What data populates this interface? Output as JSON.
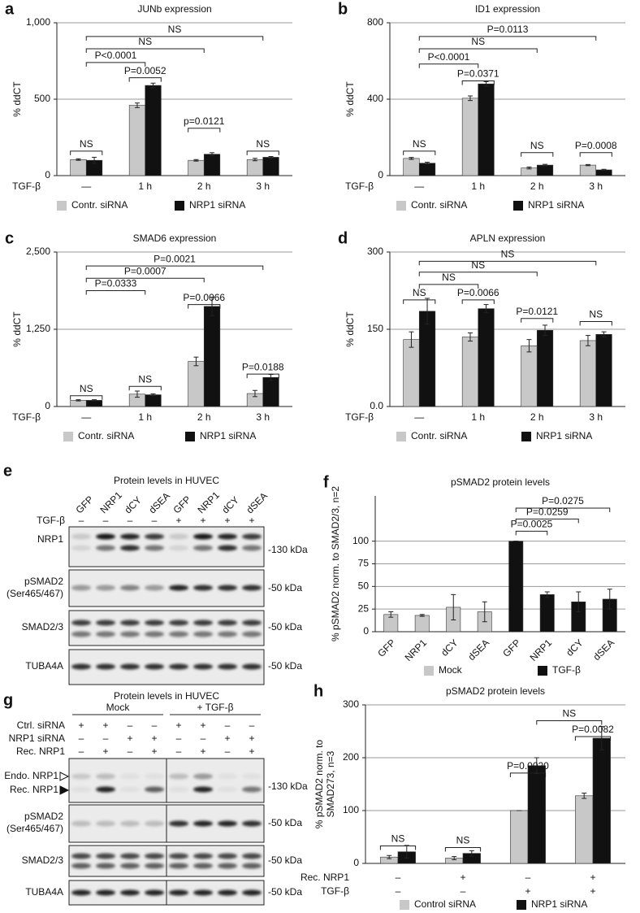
{
  "chart_data": [
    {
      "panel": "a",
      "type": "bar",
      "title": "JUNb expression",
      "ylabel": "% ddCT",
      "xlabel": "TGF-β",
      "categories": [
        "—",
        "1 h",
        "2 h",
        "3 h"
      ],
      "series": [
        {
          "name": "Contr. siRNA",
          "color": "#c8c8c8",
          "values": [
            105,
            460,
            100,
            105
          ],
          "errors": [
            5,
            15,
            5,
            8
          ]
        },
        {
          "name": "NRP1 siRNA",
          "color": "#111111",
          "values": [
            100,
            590,
            140,
            120
          ],
          "errors": [
            20,
            15,
            10,
            5
          ]
        }
      ],
      "ylim": [
        0,
        1000
      ],
      "yticks": [
        0,
        500,
        {
          "value": 1000,
          "label": "1,000"
        }
      ],
      "grid": true,
      "annotations": [
        "NS",
        "P=0.0052",
        "p=0.0121",
        "NS",
        "P<0.0001",
        "NS",
        "NS"
      ]
    },
    {
      "panel": "b",
      "type": "bar",
      "title": "ID1 expression",
      "ylabel": "% ddCT",
      "xlabel": "TGF-β",
      "categories": [
        "—",
        "1 h",
        "2 h",
        "3 h"
      ],
      "series": [
        {
          "name": "Contr. siRNA",
          "color": "#c8c8c8",
          "values": [
            90,
            405,
            40,
            55
          ],
          "errors": [
            5,
            12,
            5,
            3
          ]
        },
        {
          "name": "NRP1 siRNA",
          "color": "#111111",
          "values": [
            65,
            480,
            55,
            30
          ],
          "errors": [
            5,
            12,
            4,
            3
          ]
        }
      ],
      "ylim": [
        0,
        800
      ],
      "yticks": [
        0,
        400,
        800
      ],
      "grid": true,
      "annotations": [
        "NS",
        "P=0.0371",
        "NS",
        "P=0.0008",
        "P<0.0001",
        "NS",
        "P=0.0113"
      ]
    },
    {
      "panel": "c",
      "type": "bar",
      "title": "SMAD6 expression",
      "ylabel": "% ddCT",
      "xlabel": "TGF-β",
      "categories": [
        "—",
        "1 h",
        "2 h",
        "3 h"
      ],
      "series": [
        {
          "name": "Contr. siRNA",
          "color": "#c8c8c8",
          "values": [
            100,
            200,
            730,
            210
          ],
          "errors": [
            10,
            50,
            70,
            50
          ]
        },
        {
          "name": "NRP1 siRNA",
          "color": "#111111",
          "values": [
            100,
            190,
            1620,
            470
          ],
          "errors": [
            10,
            15,
            150,
            50
          ]
        }
      ],
      "ylim": [
        0,
        2500
      ],
      "yticks": [
        0,
        {
          "value": 1250,
          "label": "1,250"
        },
        {
          "value": 2500,
          "label": "2,500"
        }
      ],
      "grid": true,
      "annotations": [
        "NS",
        "NS",
        "P=0.0066",
        "P=0.0188",
        "P=0.0333",
        "P=0.0007",
        "P=0.0021"
      ]
    },
    {
      "panel": "d",
      "type": "bar",
      "title": "APLN expression",
      "ylabel": "% ddCT",
      "xlabel": "TGF-β",
      "categories": [
        "—",
        "1 h",
        "2 h",
        "3 h"
      ],
      "series": [
        {
          "name": "Contr. siRNA",
          "color": "#c8c8c8",
          "values": [
            130,
            135,
            118,
            128
          ],
          "errors": [
            15,
            8,
            12,
            10
          ]
        },
        {
          "name": "NRP1 siRNA",
          "color": "#111111",
          "values": [
            185,
            190,
            148,
            140
          ],
          "errors": [
            25,
            8,
            10,
            5
          ]
        }
      ],
      "ylim": [
        0,
        300
      ],
      "yticks": [
        {
          "value": 0,
          "label": "0.0"
        },
        150,
        300
      ],
      "grid": true,
      "annotations": [
        "NS",
        "P=0.0066",
        "P=0.0121",
        "NS",
        "NS",
        "NS",
        "NS"
      ]
    },
    {
      "panel": "f",
      "type": "bar",
      "title": "pSMAD2 protein levels",
      "ylabel": "% pSMAD2 norm. to SMAD2/3, n=2",
      "categories": [
        "GFP",
        "NRP1",
        "dCY",
        "dSEA",
        "GFP",
        "NRP1",
        "dCY",
        "dSEA"
      ],
      "series": [
        {
          "name": "Mock",
          "color": "#c8c8c8",
          "values": [
            19,
            18,
            27,
            22,
            null,
            null,
            null,
            null
          ],
          "errors": [
            3,
            1,
            14,
            11,
            null,
            null,
            null,
            null
          ]
        },
        {
          "name": "TGF-β",
          "color": "#111111",
          "values": [
            null,
            null,
            null,
            null,
            100,
            41,
            33,
            36
          ],
          "errors": [
            null,
            null,
            null,
            null,
            0,
            3,
            11,
            11
          ]
        }
      ],
      "ylim": [
        0,
        150
      ],
      "yticks": [
        0,
        25,
        50,
        75,
        100
      ],
      "grid": true,
      "annotations": [
        "P=0.0025",
        "P=0.0259",
        "P=0.0275"
      ]
    },
    {
      "panel": "h",
      "type": "bar",
      "title": "pSMAD2 protein levels",
      "ylabel": [
        "% pSMAD2 norm. to",
        "SMAD273, n=3"
      ],
      "categories": [
        null,
        null,
        null,
        null
      ],
      "x_rows": [
        {
          "label": "Rec. NRP1",
          "values": [
            "–",
            "+",
            "–",
            "+"
          ]
        },
        {
          "label": "TGF-β",
          "values": [
            "–",
            "–",
            "+",
            "+"
          ]
        }
      ],
      "series": [
        {
          "name": "Control siRNA",
          "color": "#c8c8c8",
          "values": [
            12,
            10,
            100,
            128
          ],
          "errors": [
            3,
            3,
            0,
            5
          ]
        },
        {
          "name": "NRP1 siRNA",
          "color": "#111111",
          "values": [
            22,
            19,
            185,
            237
          ],
          "errors": [
            12,
            5,
            15,
            22
          ]
        }
      ],
      "ylim": [
        0,
        300
      ],
      "yticks": [
        0,
        100,
        200,
        300
      ],
      "grid": true,
      "annotations": [
        "NS",
        "NS",
        "P=0.0020",
        "P=0.0082",
        "NS"
      ]
    }
  ],
  "blots": [
    {
      "panel": "e",
      "title": "Protein levels in HUVEC",
      "lanes": [
        "GFP",
        "NRP1",
        "dCY",
        "dSEA",
        "GFP",
        "NRP1",
        "dCY",
        "dSEA"
      ],
      "conditions": [
        {
          "label": "TGF-β",
          "values": [
            "–",
            "–",
            "–",
            "–",
            "+",
            "+",
            "+",
            "+"
          ]
        }
      ],
      "rows": [
        {
          "label": [
            "NRP1"
          ],
          "kda": "-130 kDa"
        },
        {
          "label": [
            "pSMAD2",
            "(Ser465/467)"
          ],
          "kda": "-50 kDa"
        },
        {
          "label": [
            "SMAD2/3"
          ],
          "kda": "-50 kDa"
        },
        {
          "label": [
            "TUBA4A"
          ],
          "kda": "-50 kDa"
        }
      ]
    },
    {
      "panel": "g",
      "title": "Protein levels in HUVEC",
      "groups": [
        "Mock",
        "+ TGF-β"
      ],
      "conditions": [
        {
          "label": "Ctrl. siRNA",
          "values": [
            "+",
            "+",
            "–",
            "–",
            "+",
            "+",
            "–",
            "–"
          ]
        },
        {
          "label": "NRP1 siRNA",
          "values": [
            "–",
            "–",
            "+",
            "+",
            "–",
            "–",
            "+",
            "+"
          ]
        },
        {
          "label": "Rec. NRP1",
          "values": [
            "–",
            "+",
            "–",
            "+",
            "–",
            "+",
            "–",
            "+"
          ]
        }
      ],
      "rows": [
        {
          "label": [
            "Endo. NRP1",
            "Rec. NRP1"
          ],
          "kda": "-130 kDa"
        },
        {
          "label": [
            "pSMAD2",
            "(Ser465/467)"
          ],
          "kda": "-50 kDa"
        },
        {
          "label": [
            "SMAD2/3"
          ],
          "kda": "-50 kDa"
        },
        {
          "label": [
            "TUBA4A"
          ],
          "kda": "-50 kDa"
        }
      ]
    }
  ]
}
